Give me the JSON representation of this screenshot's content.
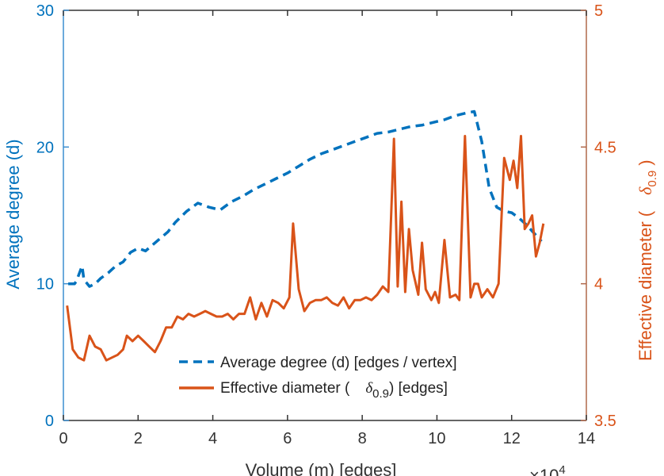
{
  "chart_data": {
    "type": "line",
    "title": "",
    "xlabel": "Volume (m) [edges]",
    "x_exponent_base": "×10",
    "x_exponent_power": "4",
    "xlim": [
      0,
      14
    ],
    "xticks": [
      0,
      2,
      4,
      6,
      8,
      10,
      12,
      14
    ],
    "ylabel_left": "Average degree (d)",
    "ylim_left": [
      0,
      30
    ],
    "yticks_left": [
      0,
      10,
      20,
      30
    ],
    "ylabel_right_prefix": "Effective diameter (",
    "ylabel_right_symbol": "δ",
    "ylabel_right_sub": "0.9",
    "ylabel_right_suffix": ")",
    "ylim_right": [
      3.5,
      5
    ],
    "yticks_right": [
      3.5,
      4,
      4.5,
      5
    ],
    "ytick_labels_right": [
      "3.5",
      "4",
      "4.5",
      "5"
    ],
    "colors": {
      "left": "#0072BD",
      "right": "#D95319",
      "axis_left": "#3C8FD0",
      "axis_right": "#B0684A"
    },
    "legend_location": "bottom-center",
    "series": [
      {
        "name": "Average degree (d) [edges / vertex]",
        "legend_label": "Average degree (d) [edges / vertex]",
        "axis": "left",
        "style": "dashed",
        "x": [
          0.13,
          0.3,
          0.35,
          0.5,
          0.55,
          0.7,
          0.85,
          1.0,
          1.2,
          1.4,
          1.6,
          1.8,
          2.0,
          2.2,
          2.5,
          2.8,
          3.0,
          3.3,
          3.6,
          3.9,
          4.2,
          4.5,
          4.8,
          5.1,
          5.4,
          5.7,
          6.0,
          6.3,
          6.6,
          6.9,
          7.2,
          7.5,
          7.8,
          8.1,
          8.4,
          8.7,
          9.0,
          9.3,
          9.6,
          9.9,
          10.2,
          10.5,
          10.8,
          11.0,
          11.2,
          11.4,
          11.6,
          11.8,
          12.0,
          12.2,
          12.4,
          12.6,
          12.8
        ],
        "values": [
          10,
          10,
          10.2,
          11.3,
          10.3,
          9.8,
          10.0,
          10.4,
          10.8,
          11.3,
          11.6,
          12.3,
          12.6,
          12.4,
          13.1,
          13.8,
          14.5,
          15.3,
          15.9,
          15.6,
          15.4,
          16.0,
          16.4,
          16.9,
          17.3,
          17.7,
          18.1,
          18.6,
          19.1,
          19.5,
          19.8,
          20.1,
          20.4,
          20.7,
          21.0,
          21.1,
          21.3,
          21.5,
          21.6,
          21.8,
          22.0,
          22.3,
          22.5,
          22.6,
          20.4,
          17.0,
          15.6,
          15.3,
          15.2,
          14.8,
          14.3,
          13.7,
          13.1
        ]
      },
      {
        "name": "Effective diameter (δ0.9) [edges]",
        "legend_label_prefix": "Effective diameter (",
        "legend_label_symbol": "δ",
        "legend_label_sub": "0.9",
        "legend_label_suffix": ") [edges]",
        "axis": "right",
        "style": "solid",
        "x": [
          0.1,
          0.25,
          0.4,
          0.55,
          0.7,
          0.85,
          1.0,
          1.15,
          1.3,
          1.45,
          1.6,
          1.7,
          1.85,
          2.0,
          2.15,
          2.3,
          2.45,
          2.6,
          2.75,
          2.9,
          3.05,
          3.2,
          3.35,
          3.5,
          3.65,
          3.8,
          3.95,
          4.1,
          4.25,
          4.4,
          4.55,
          4.7,
          4.85,
          5.0,
          5.15,
          5.3,
          5.45,
          5.6,
          5.75,
          5.9,
          6.05,
          6.15,
          6.3,
          6.45,
          6.6,
          6.75,
          6.9,
          7.05,
          7.2,
          7.35,
          7.5,
          7.65,
          7.8,
          7.95,
          8.1,
          8.25,
          8.4,
          8.55,
          8.7,
          8.85,
          8.95,
          9.05,
          9.15,
          9.25,
          9.35,
          9.5,
          9.6,
          9.7,
          9.85,
          9.95,
          10.05,
          10.2,
          10.35,
          10.5,
          10.6,
          10.75,
          10.9,
          11.0,
          11.1,
          11.2,
          11.35,
          11.5,
          11.65,
          11.8,
          11.95,
          12.05,
          12.15,
          12.25,
          12.35,
          12.45,
          12.55,
          12.65,
          12.75,
          12.85
        ],
        "values": [
          3.92,
          3.76,
          3.73,
          3.72,
          3.81,
          3.77,
          3.76,
          3.72,
          3.73,
          3.74,
          3.76,
          3.81,
          3.79,
          3.81,
          3.79,
          3.77,
          3.75,
          3.79,
          3.84,
          3.84,
          3.88,
          3.87,
          3.89,
          3.88,
          3.89,
          3.9,
          3.89,
          3.88,
          3.88,
          3.89,
          3.87,
          3.89,
          3.89,
          3.95,
          3.87,
          3.93,
          3.88,
          3.94,
          3.93,
          3.91,
          3.95,
          4.22,
          3.98,
          3.9,
          3.93,
          3.94,
          3.94,
          3.95,
          3.93,
          3.92,
          3.95,
          3.91,
          3.94,
          3.94,
          3.95,
          3.94,
          3.96,
          3.99,
          3.97,
          4.53,
          3.99,
          4.3,
          3.97,
          4.2,
          4.05,
          3.96,
          4.15,
          3.98,
          3.94,
          3.97,
          3.93,
          4.16,
          3.95,
          3.96,
          3.94,
          4.54,
          3.95,
          4.0,
          4.0,
          3.95,
          3.98,
          3.95,
          4.0,
          4.46,
          4.38,
          4.45,
          4.35,
          4.54,
          4.2,
          4.22,
          4.25,
          4.1,
          4.15,
          4.22
        ]
      }
    ]
  }
}
